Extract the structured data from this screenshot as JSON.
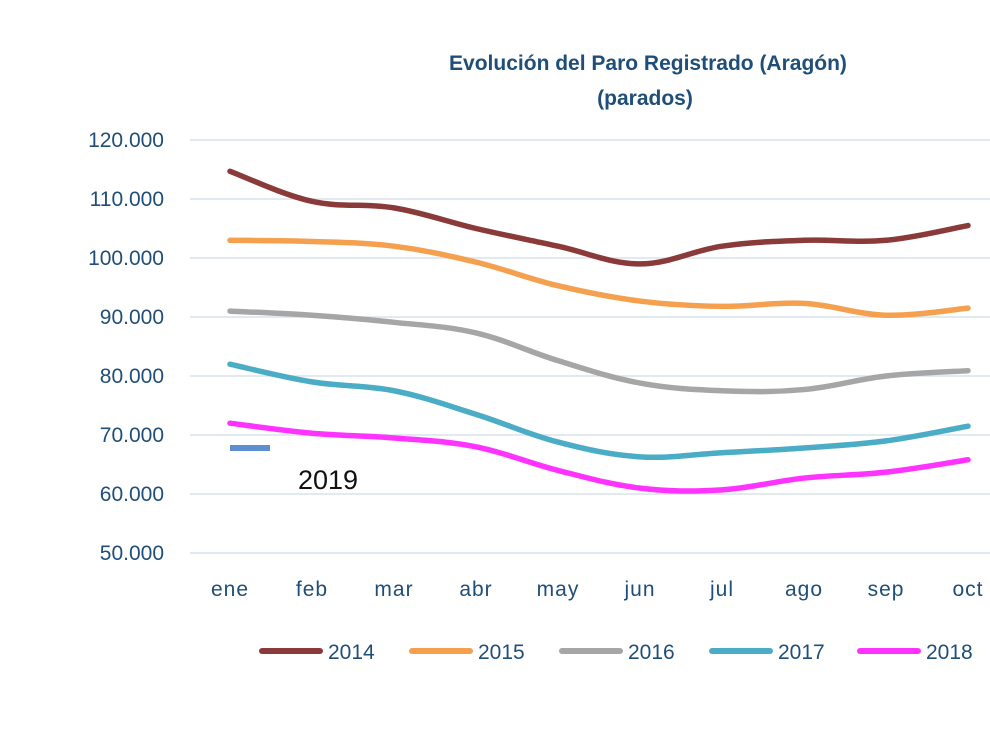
{
  "chart_data": {
    "type": "line",
    "title_line1": "Evolución del Paro Registrado (Aragón)",
    "title_line2": "(parados)",
    "categories": [
      "ene",
      "feb",
      "mar",
      "abr",
      "may",
      "jun",
      "jul",
      "ago",
      "sep",
      "oct"
    ],
    "ylim": [
      50000,
      120000
    ],
    "yticks": [
      50000,
      60000,
      70000,
      80000,
      90000,
      100000,
      110000,
      120000
    ],
    "ytick_labels": [
      "50.000",
      "60.000",
      "70.000",
      "80.000",
      "90.000",
      "100.000",
      "110.000",
      "120.000"
    ],
    "grid": true,
    "legend_position": "bottom",
    "series": [
      {
        "name": "2014",
        "color": "#8b3a3a",
        "values": [
          114700,
          109600,
          108500,
          105000,
          102000,
          99000,
          102000,
          103000,
          103000,
          105500
        ]
      },
      {
        "name": "2015",
        "color": "#f4a04f",
        "values": [
          103000,
          102800,
          102000,
          99300,
          95300,
          92700,
          91800,
          92300,
          90300,
          91500
        ]
      },
      {
        "name": "2016",
        "color": "#a6a6a6",
        "values": [
          91000,
          90300,
          89100,
          87300,
          82600,
          78800,
          77500,
          77700,
          80000,
          80900
        ]
      },
      {
        "name": "2017",
        "color": "#4bacc6",
        "values": [
          82000,
          79000,
          77500,
          73500,
          68800,
          66300,
          67000,
          67800,
          69000,
          71500
        ]
      },
      {
        "name": "2018",
        "color": "#ff33ff",
        "values": [
          72000,
          70300,
          69500,
          68000,
          64000,
          61000,
          60700,
          62700,
          63700,
          65800
        ]
      }
    ],
    "partial_series": {
      "name": "2019",
      "label": "2019",
      "color": "#5b8fd0",
      "category": "ene",
      "value": 67800
    }
  }
}
